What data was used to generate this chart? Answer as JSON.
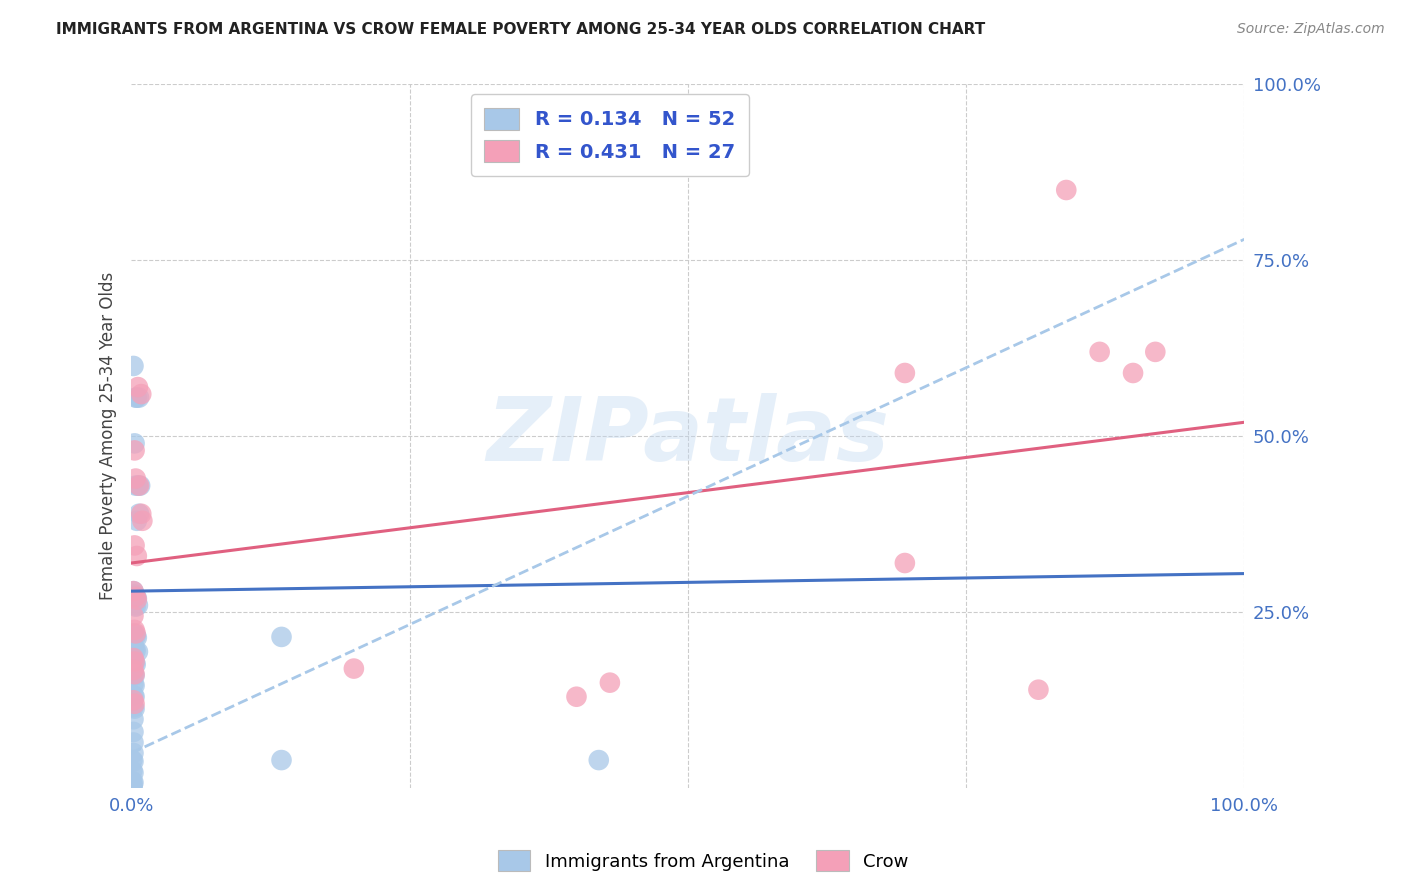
{
  "title": "IMMIGRANTS FROM ARGENTINA VS CROW FEMALE POVERTY AMONG 25-34 YEAR OLDS CORRELATION CHART",
  "source": "Source: ZipAtlas.com",
  "ylabel": "Female Poverty Among 25-34 Year Olds",
  "legend_labels": [
    "Immigrants from Argentina",
    "Crow"
  ],
  "blue_R": "0.134",
  "blue_N": "52",
  "pink_R": "0.431",
  "pink_N": "27",
  "blue_color": "#a8c8e8",
  "pink_color": "#f4a0b8",
  "blue_line_color": "#4472c4",
  "pink_line_color": "#e06080",
  "dashed_line_color": "#a8c8e8",
  "blue_scatter": [
    [
      0.002,
      0.6
    ],
    [
      0.005,
      0.555
    ],
    [
      0.007,
      0.555
    ],
    [
      0.004,
      0.555
    ],
    [
      0.003,
      0.49
    ],
    [
      0.004,
      0.43
    ],
    [
      0.006,
      0.43
    ],
    [
      0.008,
      0.43
    ],
    [
      0.005,
      0.38
    ],
    [
      0.007,
      0.39
    ],
    [
      0.002,
      0.28
    ],
    [
      0.003,
      0.275
    ],
    [
      0.004,
      0.272
    ],
    [
      0.005,
      0.27
    ],
    [
      0.003,
      0.26
    ],
    [
      0.004,
      0.258
    ],
    [
      0.006,
      0.26
    ],
    [
      0.002,
      0.22
    ],
    [
      0.003,
      0.218
    ],
    [
      0.004,
      0.216
    ],
    [
      0.005,
      0.214
    ],
    [
      0.002,
      0.2
    ],
    [
      0.003,
      0.198
    ],
    [
      0.004,
      0.196
    ],
    [
      0.006,
      0.194
    ],
    [
      0.002,
      0.18
    ],
    [
      0.003,
      0.178
    ],
    [
      0.004,
      0.176
    ],
    [
      0.002,
      0.162
    ],
    [
      0.003,
      0.16
    ],
    [
      0.002,
      0.148
    ],
    [
      0.003,
      0.146
    ],
    [
      0.002,
      0.132
    ],
    [
      0.003,
      0.13
    ],
    [
      0.002,
      0.115
    ],
    [
      0.003,
      0.113
    ],
    [
      0.002,
      0.098
    ],
    [
      0.002,
      0.08
    ],
    [
      0.002,
      0.065
    ],
    [
      0.002,
      0.05
    ],
    [
      0.001,
      0.04
    ],
    [
      0.002,
      0.038
    ],
    [
      0.001,
      0.025
    ],
    [
      0.002,
      0.022
    ],
    [
      0.001,
      0.01
    ],
    [
      0.002,
      0.008
    ],
    [
      0.001,
      0.005
    ],
    [
      0.001,
      0.003
    ],
    [
      0.001,
      0.002
    ],
    [
      0.135,
      0.215
    ],
    [
      0.135,
      0.04
    ],
    [
      0.42,
      0.04
    ]
  ],
  "pink_scatter": [
    [
      0.003,
      0.48
    ],
    [
      0.006,
      0.57
    ],
    [
      0.009,
      0.56
    ],
    [
      0.004,
      0.44
    ],
    [
      0.007,
      0.43
    ],
    [
      0.009,
      0.39
    ],
    [
      0.01,
      0.38
    ],
    [
      0.003,
      0.345
    ],
    [
      0.005,
      0.33
    ],
    [
      0.002,
      0.28
    ],
    [
      0.004,
      0.272
    ],
    [
      0.005,
      0.268
    ],
    [
      0.002,
      0.245
    ],
    [
      0.003,
      0.225
    ],
    [
      0.004,
      0.22
    ],
    [
      0.002,
      0.185
    ],
    [
      0.003,
      0.18
    ],
    [
      0.002,
      0.168
    ],
    [
      0.003,
      0.162
    ],
    [
      0.002,
      0.125
    ],
    [
      0.003,
      0.12
    ],
    [
      0.2,
      0.17
    ],
    [
      0.4,
      0.13
    ],
    [
      0.43,
      0.15
    ],
    [
      0.695,
      0.59
    ],
    [
      0.695,
      0.32
    ],
    [
      0.815,
      0.14
    ],
    [
      0.84,
      0.85
    ],
    [
      0.87,
      0.62
    ],
    [
      0.9,
      0.59
    ],
    [
      0.92,
      0.62
    ]
  ],
  "watermark_text": "ZIPatlas",
  "watermark_color": "#c0d8f0",
  "watermark_alpha": 0.4,
  "grid_color": "#cccccc",
  "bg_color": "#ffffff",
  "title_color": "#222222",
  "axis_label_color": "#444444",
  "tick_color_right": "#4472c4",
  "tick_color_bottom": "#4472c4",
  "blue_trend": [
    0.28,
    0.305
  ],
  "pink_trend": [
    0.32,
    0.52
  ],
  "dashed_trend": [
    0.05,
    0.78
  ],
  "xlim": [
    0.0,
    1.0
  ],
  "ylim": [
    0.0,
    1.0
  ]
}
